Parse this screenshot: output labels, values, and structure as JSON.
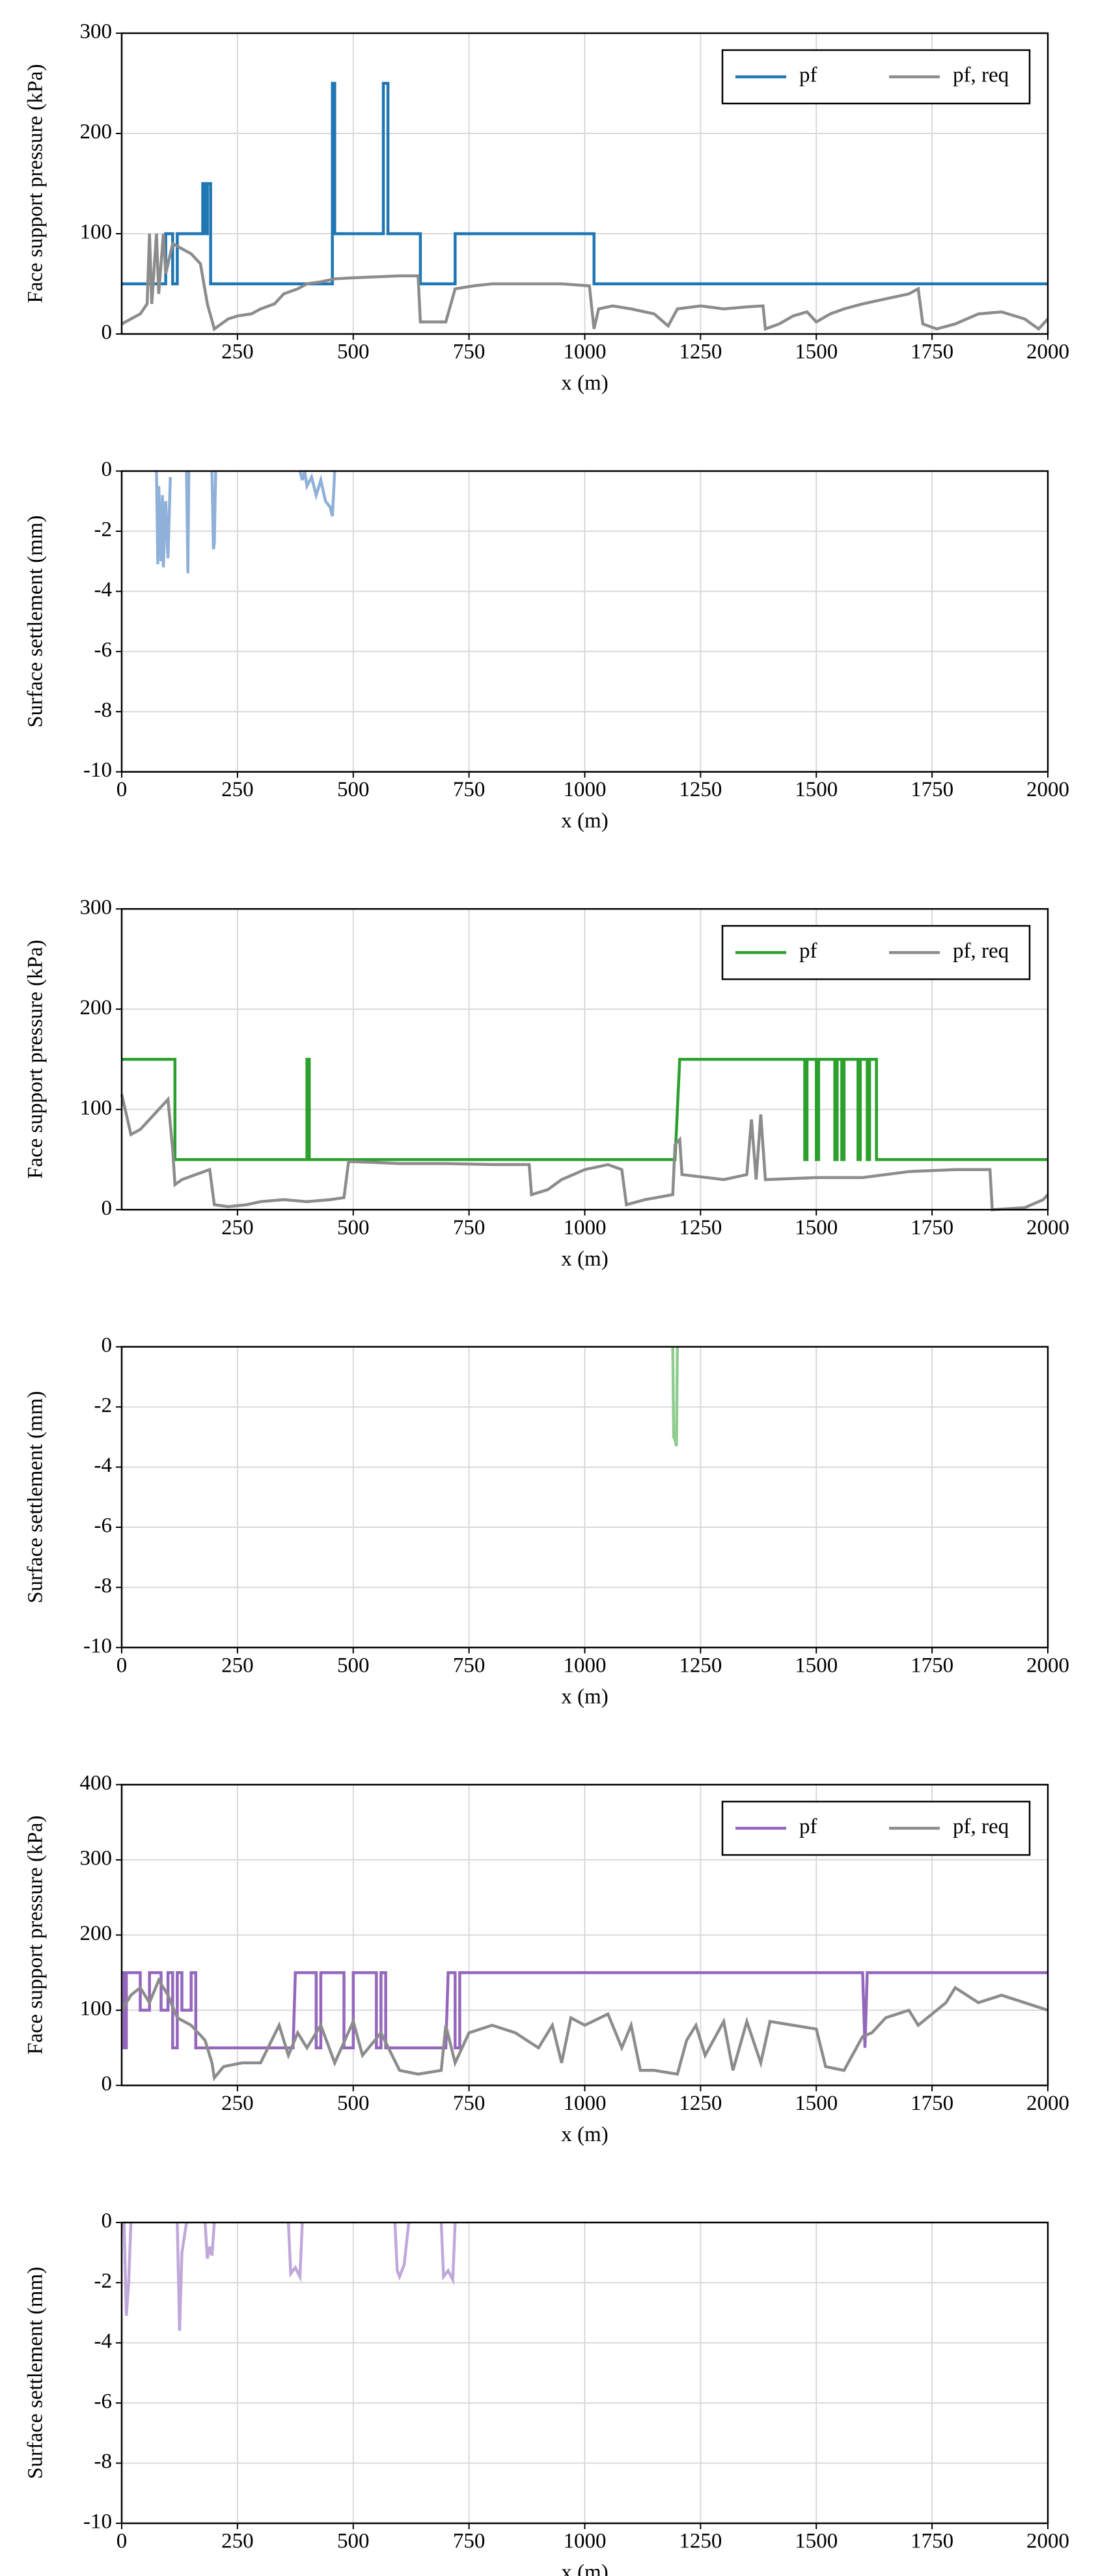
{
  "chart_data": [
    {
      "type": "line",
      "xlabel": "x (m)",
      "ylabel": "Face support pressure (kPa)",
      "xlim": [
        0,
        2000
      ],
      "ylim": [
        0,
        300
      ],
      "xticks": [
        250,
        500,
        750,
        1000,
        1250,
        1500,
        1750,
        2000
      ],
      "yticks": [
        0,
        100,
        200,
        300
      ],
      "grid": true,
      "legend": "upper right",
      "series": [
        {
          "name": "pf",
          "color": "#1f77b4",
          "x": [
            0,
            95,
            95,
            110,
            110,
            120,
            120,
            175,
            175,
            180,
            180,
            185,
            185,
            192,
            192,
            455,
            455,
            460,
            460,
            565,
            565,
            575,
            575,
            645,
            645,
            720,
            720,
            1020,
            1020,
            2000
          ],
          "values": [
            50,
            50,
            100,
            100,
            50,
            50,
            100,
            100,
            150,
            150,
            100,
            100,
            150,
            150,
            50,
            50,
            250,
            250,
            100,
            100,
            250,
            250,
            100,
            100,
            50,
            50,
            100,
            100,
            50,
            50
          ]
        },
        {
          "name": "pf, req",
          "color": "#8c8c8c",
          "x": [
            0,
            20,
            40,
            55,
            60,
            65,
            75,
            80,
            90,
            95,
            110,
            130,
            150,
            170,
            185,
            200,
            215,
            230,
            250,
            280,
            300,
            330,
            350,
            380,
            400,
            430,
            460,
            500,
            550,
            600,
            640,
            645,
            700,
            720,
            760,
            800,
            850,
            900,
            950,
            1010,
            1020,
            1030,
            1060,
            1100,
            1150,
            1180,
            1200,
            1250,
            1300,
            1350,
            1385,
            1390,
            1420,
            1450,
            1480,
            1500,
            1530,
            1560,
            1600,
            1650,
            1700,
            1720,
            1730,
            1760,
            1800,
            1850,
            1900,
            1950,
            1980,
            2000
          ],
          "values": [
            10,
            15,
            20,
            30,
            100,
            30,
            100,
            40,
            100,
            60,
            90,
            85,
            80,
            70,
            30,
            5,
            10,
            15,
            18,
            20,
            25,
            30,
            40,
            45,
            50,
            52,
            55,
            56,
            57,
            58,
            58,
            12,
            12,
            45,
            48,
            50,
            50,
            50,
            50,
            48,
            5,
            25,
            28,
            25,
            20,
            8,
            25,
            28,
            25,
            27,
            28,
            5,
            10,
            18,
            22,
            12,
            20,
            25,
            30,
            35,
            40,
            45,
            10,
            5,
            10,
            20,
            22,
            15,
            5,
            15
          ]
        }
      ]
    },
    {
      "type": "line",
      "xlabel": "x (m)",
      "ylabel": "Surface settlement (mm)",
      "xlim": [
        0,
        2000
      ],
      "ylim": [
        -10,
        0
      ],
      "xticks": [
        0,
        250,
        500,
        750,
        1000,
        1250,
        1500,
        1750,
        2000
      ],
      "yticks": [
        -10,
        -8,
        -6,
        -4,
        -2,
        0
      ],
      "grid": true,
      "series": [
        {
          "color": "#8fb0d9",
          "x": [
            75,
            78,
            80,
            85,
            88,
            90,
            95,
            100,
            105,
            120,
            140,
            143,
            145,
            170,
            195,
            198,
            200,
            203,
            300,
            385,
            390,
            395,
            400,
            410,
            420,
            430,
            440,
            450,
            455,
            460
          ],
          "values": [
            0,
            -3.1,
            -0.5,
            -3.0,
            -0.8,
            -3.2,
            -1,
            -2.9,
            -0.2,
            null,
            0,
            -3.4,
            0,
            null,
            0,
            -2.6,
            -2.4,
            0,
            null,
            0,
            -0.3,
            0,
            -0.5,
            -0.2,
            -0.8,
            -0.3,
            -1.0,
            -1.2,
            -1.5,
            0
          ]
        }
      ]
    },
    {
      "type": "line",
      "xlabel": "x (m)",
      "ylabel": "Face support pressure (kPa)",
      "xlim": [
        0,
        2000
      ],
      "ylim": [
        0,
        300
      ],
      "xticks": [
        250,
        500,
        750,
        1000,
        1250,
        1500,
        1750,
        2000
      ],
      "yticks": [
        0,
        100,
        200,
        300
      ],
      "grid": true,
      "legend": "upper right",
      "series": [
        {
          "name": "pf",
          "color": "#2ca02c",
          "x": [
            0,
            115,
            115,
            400,
            400,
            405,
            405,
            1195,
            1205,
            1475,
            1475,
            1480,
            1480,
            1500,
            1500,
            1505,
            1505,
            1540,
            1540,
            1545,
            1545,
            1555,
            1555,
            1560,
            1560,
            1590,
            1590,
            1595,
            1595,
            1610,
            1610,
            1615,
            1615,
            1630,
            1630,
            2000
          ],
          "values": [
            150,
            150,
            50,
            50,
            150,
            150,
            50,
            50,
            150,
            150,
            50,
            50,
            150,
            150,
            50,
            50,
            150,
            150,
            50,
            50,
            150,
            150,
            50,
            50,
            150,
            150,
            50,
            50,
            150,
            150,
            50,
            50,
            150,
            150,
            50,
            50
          ]
        },
        {
          "name": "pf, req",
          "color": "#8c8c8c",
          "x": [
            0,
            10,
            20,
            40,
            60,
            80,
            100,
            110,
            115,
            130,
            160,
            190,
            200,
            230,
            270,
            300,
            350,
            400,
            450,
            480,
            490,
            550,
            600,
            700,
            800,
            880,
            885,
            920,
            950,
            1000,
            1050,
            1080,
            1090,
            1130,
            1190,
            1195,
            1205,
            1210,
            1300,
            1350,
            1360,
            1370,
            1380,
            1390,
            1500,
            1600,
            1700,
            1800,
            1875,
            1880,
            1950,
            1990,
            2000
          ],
          "values": [
            115,
            95,
            75,
            80,
            90,
            100,
            110,
            60,
            25,
            30,
            35,
            40,
            5,
            3,
            5,
            8,
            10,
            8,
            10,
            12,
            48,
            47,
            46,
            46,
            45,
            45,
            15,
            20,
            30,
            40,
            45,
            40,
            5,
            10,
            15,
            65,
            70,
            35,
            30,
            35,
            90,
            30,
            95,
            30,
            32,
            32,
            38,
            40,
            40,
            0,
            2,
            10,
            15
          ]
        }
      ]
    },
    {
      "type": "line",
      "xlabel": "x (m)",
      "ylabel": "Surface settlement (mm)",
      "xlim": [
        0,
        2000
      ],
      "ylim": [
        -10,
        0
      ],
      "xticks": [
        0,
        250,
        500,
        750,
        1000,
        1250,
        1500,
        1750,
        2000
      ],
      "yticks": [
        -10,
        -8,
        -6,
        -4,
        -2,
        0
      ],
      "grid": true,
      "series": [
        {
          "color": "#8fcc8f",
          "x": [
            1190,
            1192,
            1195,
            1198,
            1200
          ],
          "values": [
            0,
            -3.0,
            -3.1,
            -3.3,
            0
          ]
        }
      ]
    },
    {
      "type": "line",
      "xlabel": "x (m)",
      "ylabel": "Face support pressure (kPa)",
      "xlim": [
        0,
        2000
      ],
      "ylim": [
        0,
        400
      ],
      "xticks": [
        250,
        500,
        750,
        1000,
        1250,
        1500,
        1750,
        2000
      ],
      "yticks": [
        0,
        100,
        200,
        300,
        400
      ],
      "grid": true,
      "legend": "upper right",
      "series": [
        {
          "name": "pf",
          "color": "#9467bd",
          "x": [
            0,
            5,
            5,
            10,
            10,
            40,
            40,
            60,
            60,
            85,
            85,
            100,
            100,
            110,
            110,
            120,
            120,
            130,
            130,
            150,
            150,
            160,
            160,
            370,
            375,
            420,
            420,
            430,
            430,
            480,
            480,
            500,
            500,
            550,
            550,
            560,
            560,
            570,
            570,
            700,
            705,
            720,
            720,
            730,
            730,
            1600,
            1605,
            1610,
            2000
          ],
          "values": [
            150,
            150,
            50,
            50,
            150,
            150,
            100,
            100,
            150,
            150,
            100,
            100,
            150,
            150,
            50,
            50,
            150,
            150,
            100,
            100,
            150,
            150,
            50,
            50,
            150,
            150,
            50,
            50,
            150,
            150,
            50,
            50,
            150,
            150,
            50,
            50,
            150,
            150,
            50,
            50,
            150,
            150,
            50,
            50,
            150,
            150,
            50,
            150,
            150
          ]
        },
        {
          "name": "pf, req",
          "color": "#8c8c8c",
          "x": [
            0,
            20,
            40,
            60,
            80,
            100,
            120,
            150,
            180,
            195,
            200,
            220,
            260,
            300,
            340,
            360,
            380,
            400,
            430,
            460,
            500,
            520,
            560,
            600,
            640,
            690,
            700,
            720,
            750,
            800,
            850,
            900,
            930,
            950,
            970,
            1000,
            1050,
            1080,
            1100,
            1120,
            1150,
            1200,
            1220,
            1240,
            1260,
            1300,
            1320,
            1350,
            1380,
            1400,
            1450,
            1500,
            1520,
            1560,
            1600,
            1620,
            1650,
            1700,
            1720,
            1750,
            1780,
            1800,
            1850,
            1900,
            1950,
            2000
          ],
          "values": [
            100,
            120,
            130,
            110,
            140,
            120,
            90,
            80,
            60,
            30,
            10,
            25,
            30,
            30,
            80,
            40,
            70,
            50,
            80,
            30,
            85,
            40,
            70,
            20,
            15,
            20,
            80,
            30,
            70,
            80,
            70,
            50,
            80,
            30,
            90,
            80,
            95,
            50,
            80,
            20,
            20,
            15,
            60,
            80,
            40,
            85,
            20,
            85,
            30,
            85,
            80,
            75,
            25,
            20,
            65,
            70,
            90,
            100,
            80,
            95,
            110,
            130,
            110,
            120,
            110,
            100
          ]
        }
      ]
    },
    {
      "type": "line",
      "xlabel": "x (m)",
      "ylabel": "Surface settlement (mm)",
      "xlim": [
        0,
        2000
      ],
      "ylim": [
        -10,
        0
      ],
      "xticks": [
        0,
        250,
        500,
        750,
        1000,
        1250,
        1500,
        1750,
        2000
      ],
      "yticks": [
        -10,
        -8,
        -6,
        -4,
        -2,
        0
      ],
      "grid": true,
      "series": [
        {
          "color": "#c0a8db",
          "x": [
            5,
            10,
            15,
            20,
            70,
            120,
            125,
            130,
            140,
            160,
            180,
            185,
            190,
            195,
            200,
            280,
            360,
            365,
            375,
            385,
            390,
            490,
            590,
            595,
            600,
            610,
            620,
            650,
            690,
            695,
            705,
            715,
            720
          ],
          "values": [
            0,
            -3.1,
            -2.0,
            0,
            null,
            0,
            -3.6,
            -1,
            0,
            null,
            0,
            -1.2,
            -0.8,
            -1.1,
            0,
            null,
            0,
            -1.7,
            -1.5,
            -1.8,
            0,
            null,
            0,
            -1.6,
            -1.8,
            -1.4,
            0,
            null,
            0,
            -1.8,
            -1.6,
            -1.9,
            0
          ]
        }
      ]
    }
  ]
}
